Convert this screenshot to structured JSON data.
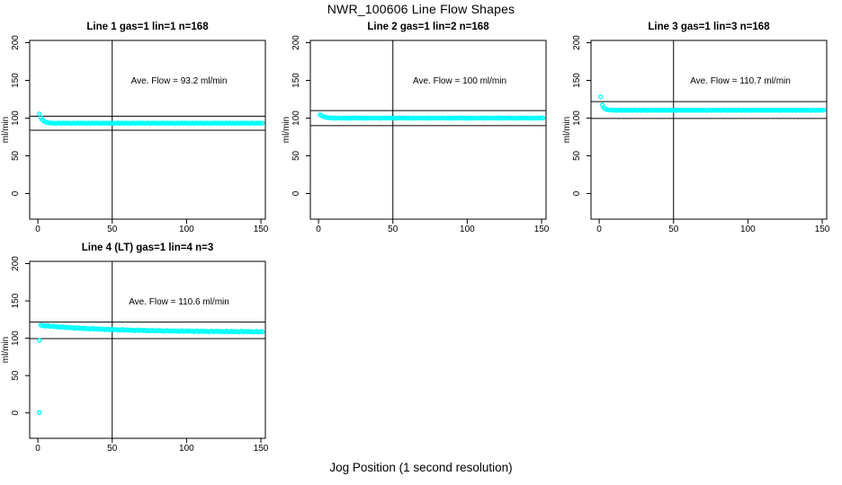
{
  "page": {
    "title": "NWR_100606  Line Flow Shapes",
    "x_axis_label": "Jog Position (1 second resolution)",
    "background": "#ffffff"
  },
  "style": {
    "marker_color": "#00ffff",
    "line_color": "#000000",
    "text_color": "#000000"
  },
  "chart_data": [
    {
      "type": "scatter",
      "title": "Line 1 gas=1 lin=1 n=168",
      "ylabel": "ml/min",
      "annotation": "Ave. Flow =  93.2  ml/min",
      "ave_flow_ml_min": 93.2,
      "n": 168,
      "xticks": [
        0,
        50,
        100,
        150
      ],
      "yticks": [
        0,
        50,
        100,
        150,
        200
      ],
      "xlim": [
        -5.5,
        153
      ],
      "ylim": [
        -34,
        203
      ],
      "vline_x": 50,
      "hlines": [
        102.5,
        83.9
      ],
      "grid": false,
      "x_start": 1,
      "x_step": 1,
      "y_values": [
        105.6,
        100.9,
        97.8,
        96.1,
        95,
        94.3,
        93.9,
        93.6,
        93.5,
        93.1,
        93.4,
        92.9,
        93.3,
        93.6,
        93,
        93.2,
        93.5,
        93,
        93.5,
        93.1,
        93.4,
        92.9,
        93.3,
        93.6,
        93,
        93.2,
        93.5,
        93,
        93.5,
        93.1,
        93.4,
        92.9,
        93.3,
        93.6,
        93,
        93.2,
        93.5,
        93,
        93.5,
        93.1,
        93.4,
        92.9,
        93.3,
        93.6,
        93,
        93.2,
        93.5,
        93,
        93.5,
        93.1,
        93.4,
        92.9,
        93.3,
        93.6,
        93,
        93.2,
        93.5,
        93,
        93.5,
        93.1,
        93.4,
        92.9,
        93.3,
        93.6,
        93,
        93.2,
        93.5,
        93,
        93.5,
        93.1,
        93.4,
        92.9,
        93.3,
        93.6,
        93,
        93.2,
        93.5,
        93,
        93.5,
        93.1,
        93.4,
        92.9,
        93.3,
        93.6,
        93,
        93.2,
        93.5,
        93,
        93.5,
        93.1,
        93.4,
        92.9,
        93.3,
        93.6,
        93,
        93.2,
        93.5,
        93,
        93.5,
        93.1,
        93.4,
        92.9,
        93.3,
        93.6,
        93,
        93.2,
        93.5,
        93,
        93.5,
        93.1,
        93.4,
        92.9,
        93.3,
        93.6,
        93,
        93.2,
        93.5,
        93,
        93.5,
        93.1,
        93.4,
        92.9,
        93.3,
        93.6,
        93,
        93.2,
        93.5,
        93,
        93.5,
        93.1,
        93.4,
        92.9,
        93.3,
        93.6,
        93,
        93.2,
        93.5,
        93,
        93.5,
        93.1,
        93.4,
        92.9,
        93.3,
        93.6,
        93,
        93.2,
        93.5,
        93,
        93.5,
        93.1,
        93.4
      ]
    },
    {
      "type": "scatter",
      "title": "Line 2 gas=1 lin=2 n=168",
      "ylabel": "ml/min",
      "annotation": "Ave. Flow =  100  ml/min",
      "ave_flow_ml_min": 100,
      "n": 168,
      "xticks": [
        0,
        50,
        100,
        150
      ],
      "yticks": [
        0,
        50,
        100,
        150,
        200
      ],
      "xlim": [
        -5.5,
        153
      ],
      "ylim": [
        -34,
        203
      ],
      "vline_x": 50,
      "hlines": [
        110,
        90
      ],
      "grid": false,
      "x_start": 1,
      "x_step": 1,
      "y_values": [
        104.6,
        103.2,
        102.2,
        101.5,
        101,
        100.7,
        100.5,
        100.3,
        100.3,
        99.9,
        100.2,
        99.7,
        100.1,
        100.4,
        99.8,
        100,
        100.3,
        99.8,
        100.3,
        99.9,
        100.2,
        99.7,
        100.1,
        100.4,
        99.8,
        100,
        100.3,
        99.8,
        100.3,
        99.9,
        100.2,
        99.7,
        100.1,
        100.4,
        99.8,
        100,
        100.3,
        99.8,
        100.3,
        99.9,
        100.2,
        99.7,
        100.1,
        100.4,
        99.8,
        100,
        100.3,
        99.8,
        100.3,
        99.9,
        100.2,
        99.7,
        100.1,
        100.4,
        99.8,
        100,
        100.3,
        99.8,
        100.3,
        99.9,
        100.2,
        99.7,
        100.1,
        100.4,
        99.8,
        100,
        100.3,
        99.8,
        100.3,
        99.9,
        100.2,
        99.7,
        100.1,
        100.4,
        99.8,
        100,
        100.3,
        99.8,
        100.3,
        99.9,
        100.2,
        99.7,
        100.1,
        100.4,
        99.8,
        100,
        100.3,
        99.8,
        100.3,
        99.9,
        100.2,
        99.7,
        100.1,
        100.4,
        99.8,
        100,
        100.3,
        99.8,
        100.3,
        99.9,
        100.2,
        99.7,
        100.1,
        100.4,
        99.8,
        100,
        100.3,
        99.8,
        100.3,
        99.9,
        100.2,
        99.7,
        100.1,
        100.4,
        99.8,
        100,
        100.3,
        99.8,
        100.3,
        99.9,
        100.2,
        99.7,
        100.1,
        100.4,
        99.8,
        100,
        100.3,
        99.8,
        100.3,
        99.9,
        100.2,
        99.7,
        100.1,
        100.4,
        99.8,
        100,
        100.3,
        99.8,
        100.3,
        99.9,
        100.2,
        99.7,
        100.1,
        100.4,
        99.8,
        100,
        100.3,
        99.8,
        100.3,
        99.9,
        100.2
      ]
    },
    {
      "type": "scatter",
      "title": "Line 3 gas=1 lin=3 n=168",
      "ylabel": "ml/min",
      "annotation": "Ave. Flow =  110.7  ml/min",
      "ave_flow_ml_min": 110.7,
      "n": 168,
      "xticks": [
        0,
        50,
        100,
        150
      ],
      "yticks": [
        0,
        50,
        100,
        150,
        200
      ],
      "xlim": [
        -5.5,
        153
      ],
      "ylim": [
        -34,
        203
      ],
      "vline_x": 50,
      "hlines": [
        121.8,
        99.6
      ],
      "grid": false,
      "x_start": 1,
      "x_step": 1,
      "y_values": [
        128.2,
        117.6,
        114,
        112.3,
        111.5,
        111,
        110.8,
        110.6,
        110.7,
        110.3,
        110.6,
        110.1,
        110.5,
        110.8,
        110.2,
        110.4,
        110.7,
        110.2,
        110.7,
        110.3,
        110.6,
        110.1,
        110.5,
        110.8,
        110.2,
        110.4,
        110.7,
        110.2,
        110.7,
        110.3,
        110.6,
        110.1,
        110.5,
        110.8,
        110.2,
        110.4,
        110.7,
        110.2,
        110.7,
        110.3,
        110.6,
        110.1,
        110.5,
        110.8,
        110.2,
        110.4,
        110.7,
        110.2,
        110.7,
        110.3,
        110.6,
        110.1,
        110.5,
        110.8,
        110.2,
        110.4,
        110.7,
        110.2,
        110.7,
        110.3,
        110.6,
        110.1,
        110.5,
        110.8,
        110.2,
        110.4,
        110.7,
        110.2,
        110.7,
        110.3,
        110.6,
        110.1,
        110.5,
        110.8,
        110.2,
        110.4,
        110.7,
        110.2,
        110.7,
        110.3,
        110.6,
        110.1,
        110.5,
        110.8,
        110.2,
        110.4,
        110.7,
        110.2,
        110.7,
        110.3,
        110.6,
        110.1,
        110.5,
        110.8,
        110.2,
        110.4,
        110.7,
        110.2,
        110.7,
        110.3,
        110.6,
        110.1,
        110.5,
        110.8,
        110.2,
        110.4,
        110.7,
        110.2,
        110.7,
        110.3,
        110.6,
        110.1,
        110.5,
        110.8,
        110.2,
        110.4,
        110.7,
        110.2,
        110.7,
        110.3,
        110.6,
        110.1,
        110.5,
        110.8,
        110.2,
        110.4,
        110.7,
        110.2,
        110.7,
        110.3,
        110.6,
        110.1,
        110.5,
        110.8,
        110.2,
        110.4,
        110.7,
        110.2,
        110.7,
        110.3,
        110.6,
        110.1,
        110.5,
        110.8,
        110.2,
        110.4,
        110.7,
        110.2,
        110.7,
        110.3,
        110.6
      ]
    },
    {
      "type": "scatter",
      "title": "Line 4 (LT) gas=1 lin=4 n=3",
      "ylabel": "ml/min",
      "annotation": "Ave. Flow =  110.6  ml/min",
      "ave_flow_ml_min": 110.6,
      "n": 3,
      "xticks": [
        0,
        50,
        100,
        150
      ],
      "yticks": [
        0,
        50,
        100,
        150,
        200
      ],
      "xlim": [
        -5.5,
        153
      ],
      "ylim": [
        -34,
        203
      ],
      "vline_x": 50,
      "hlines": [
        121.7,
        99.5
      ],
      "grid": false,
      "x_start": 2,
      "x_step": 1,
      "extra_points": [
        [
          1,
          0.5
        ],
        [
          1,
          97.2
        ]
      ],
      "y_values": [
        117.6,
        116.8,
        117.1,
        116.1,
        116.7,
        117.1,
        115.8,
        116.1,
        116.4,
        115.5,
        116,
        115.1,
        115.5,
        114.5,
        115.1,
        115.5,
        114.3,
        114.5,
        114.9,
        114,
        114.6,
        113.8,
        114.2,
        113.2,
        113.9,
        114.3,
        113.1,
        113.4,
        113.7,
        112.8,
        113.5,
        112.7,
        113.1,
        112.2,
        112.9,
        113.3,
        112.1,
        112.4,
        112.8,
        111.9,
        112.6,
        111.9,
        112.3,
        111.3,
        112.1,
        112.5,
        111.3,
        111.6,
        112.1,
        111.2,
        111.9,
        111.2,
        111.6,
        110.6,
        111.4,
        111.8,
        110.7,
        111,
        111.4,
        110.6,
        111.3,
        110.6,
        111,
        110.1,
        110.8,
        111.3,
        110.1,
        110.5,
        110.9,
        110.1,
        110.9,
        110.1,
        110.6,
        109.6,
        110.4,
        110.9,
        109.7,
        110.1,
        110.5,
        109.7,
        110.5,
        109.7,
        110.2,
        109.3,
        110.1,
        110.5,
        109.4,
        109.8,
        110.2,
        109.4,
        110.2,
        109.4,
        109.9,
        109,
        109.8,
        110.2,
        109.1,
        109.5,
        110,
        109.1,
        109.9,
        109.2,
        109.7,
        108.7,
        109.5,
        110,
        108.9,
        109.3,
        109.7,
        108.9,
        109.7,
        109,
        109.5,
        108.5,
        109.3,
        109.8,
        108.7,
        109.1,
        109.6,
        108.7,
        109.5,
        108.8,
        109.3,
        108.4,
        109.2,
        109.7,
        108.5,
        108.9,
        109.4,
        108.6,
        109.4,
        108.7,
        109.2,
        108.3,
        109.1,
        109.5,
        108.4,
        108.8,
        109.3,
        108.5,
        109.3,
        108.6,
        109.1,
        108.2,
        108.9,
        109.4,
        108.3,
        108.7,
        109.2,
        108.4
      ]
    }
  ]
}
